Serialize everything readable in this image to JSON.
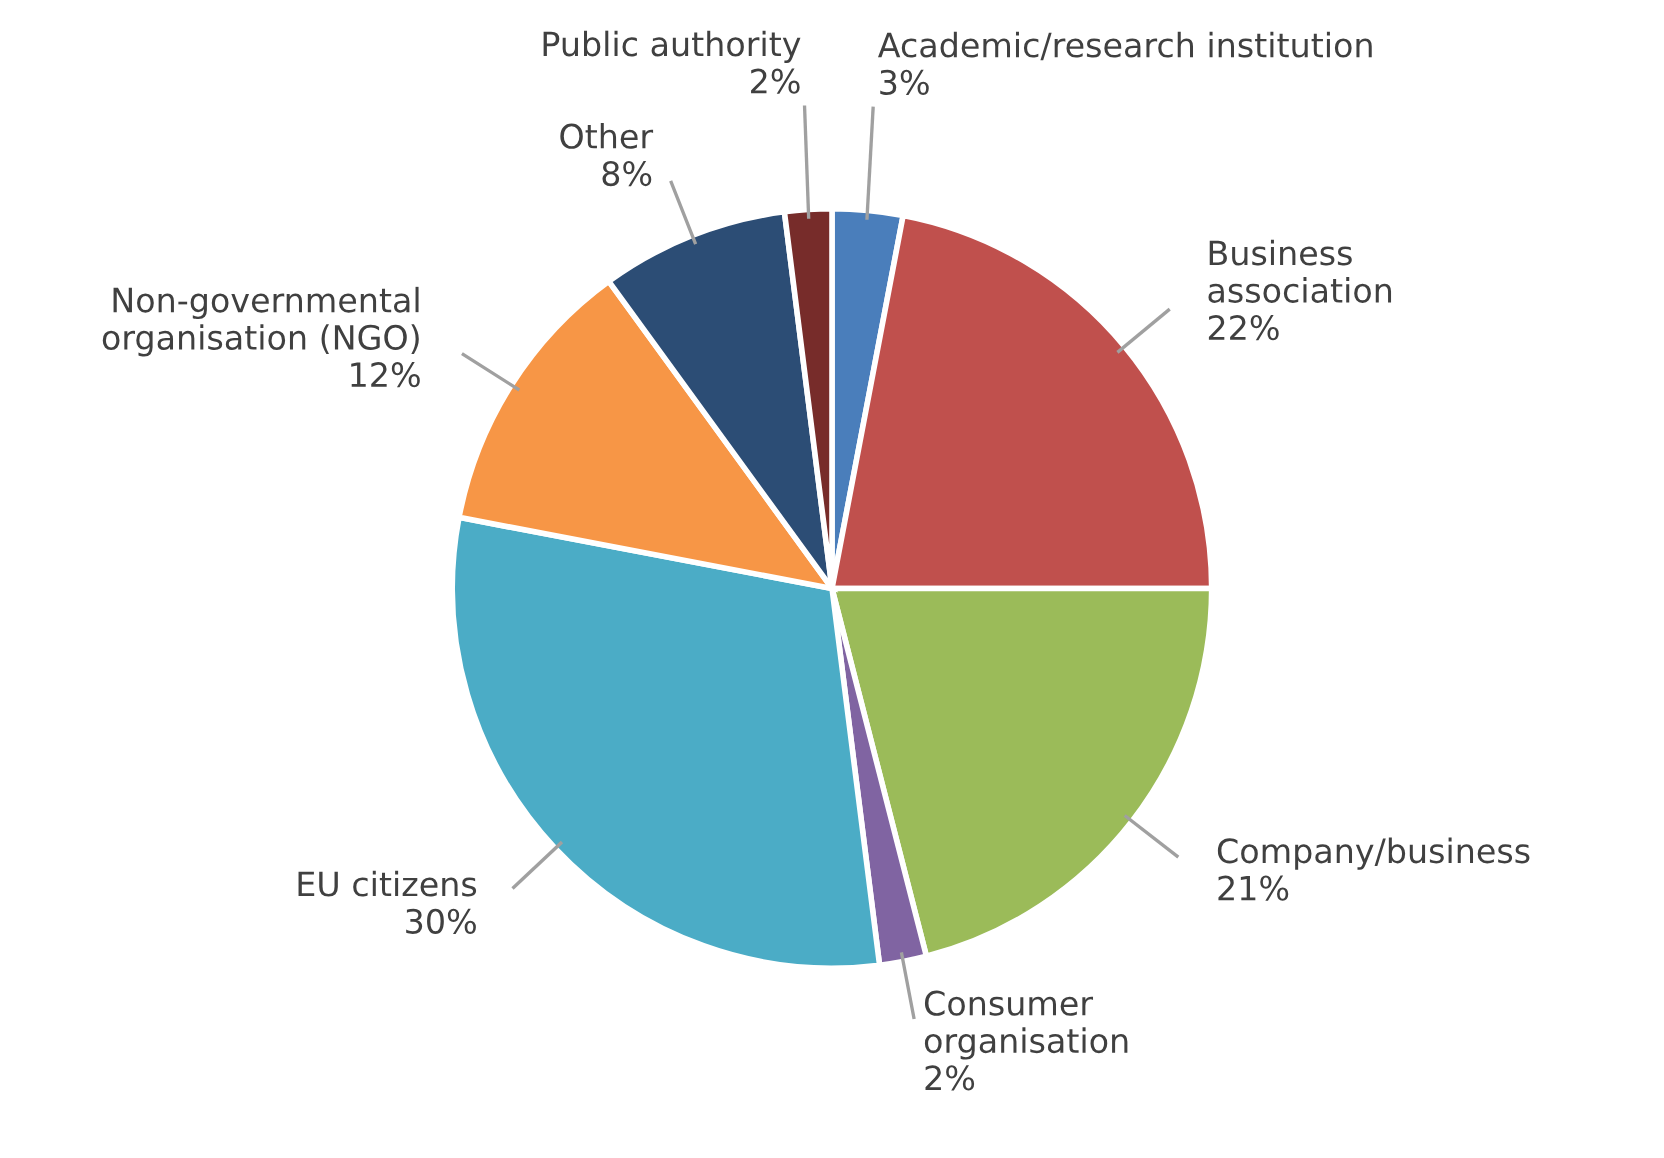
{
  "chart_data": {
    "type": "pie",
    "categories": [
      "Academic/research institution",
      "Business\nassociation",
      "Company/business",
      "Consumer\norganisation",
      "EU citizens",
      "Non-governmental\norganisation (NGO)",
      "Other",
      "Public authority"
    ],
    "values": [
      3,
      22,
      21,
      2,
      30,
      12,
      8,
      2
    ],
    "value_labels": [
      "3%",
      "22%",
      "21%",
      "2%",
      "30%",
      "12%",
      "8%",
      "2%"
    ],
    "colors": [
      "#4a7ebb",
      "#c0504d",
      "#9bbb59",
      "#8064a2",
      "#4bacc6",
      "#f79646",
      "#2c4d75",
      "#772c2a"
    ],
    "legend": false
  }
}
